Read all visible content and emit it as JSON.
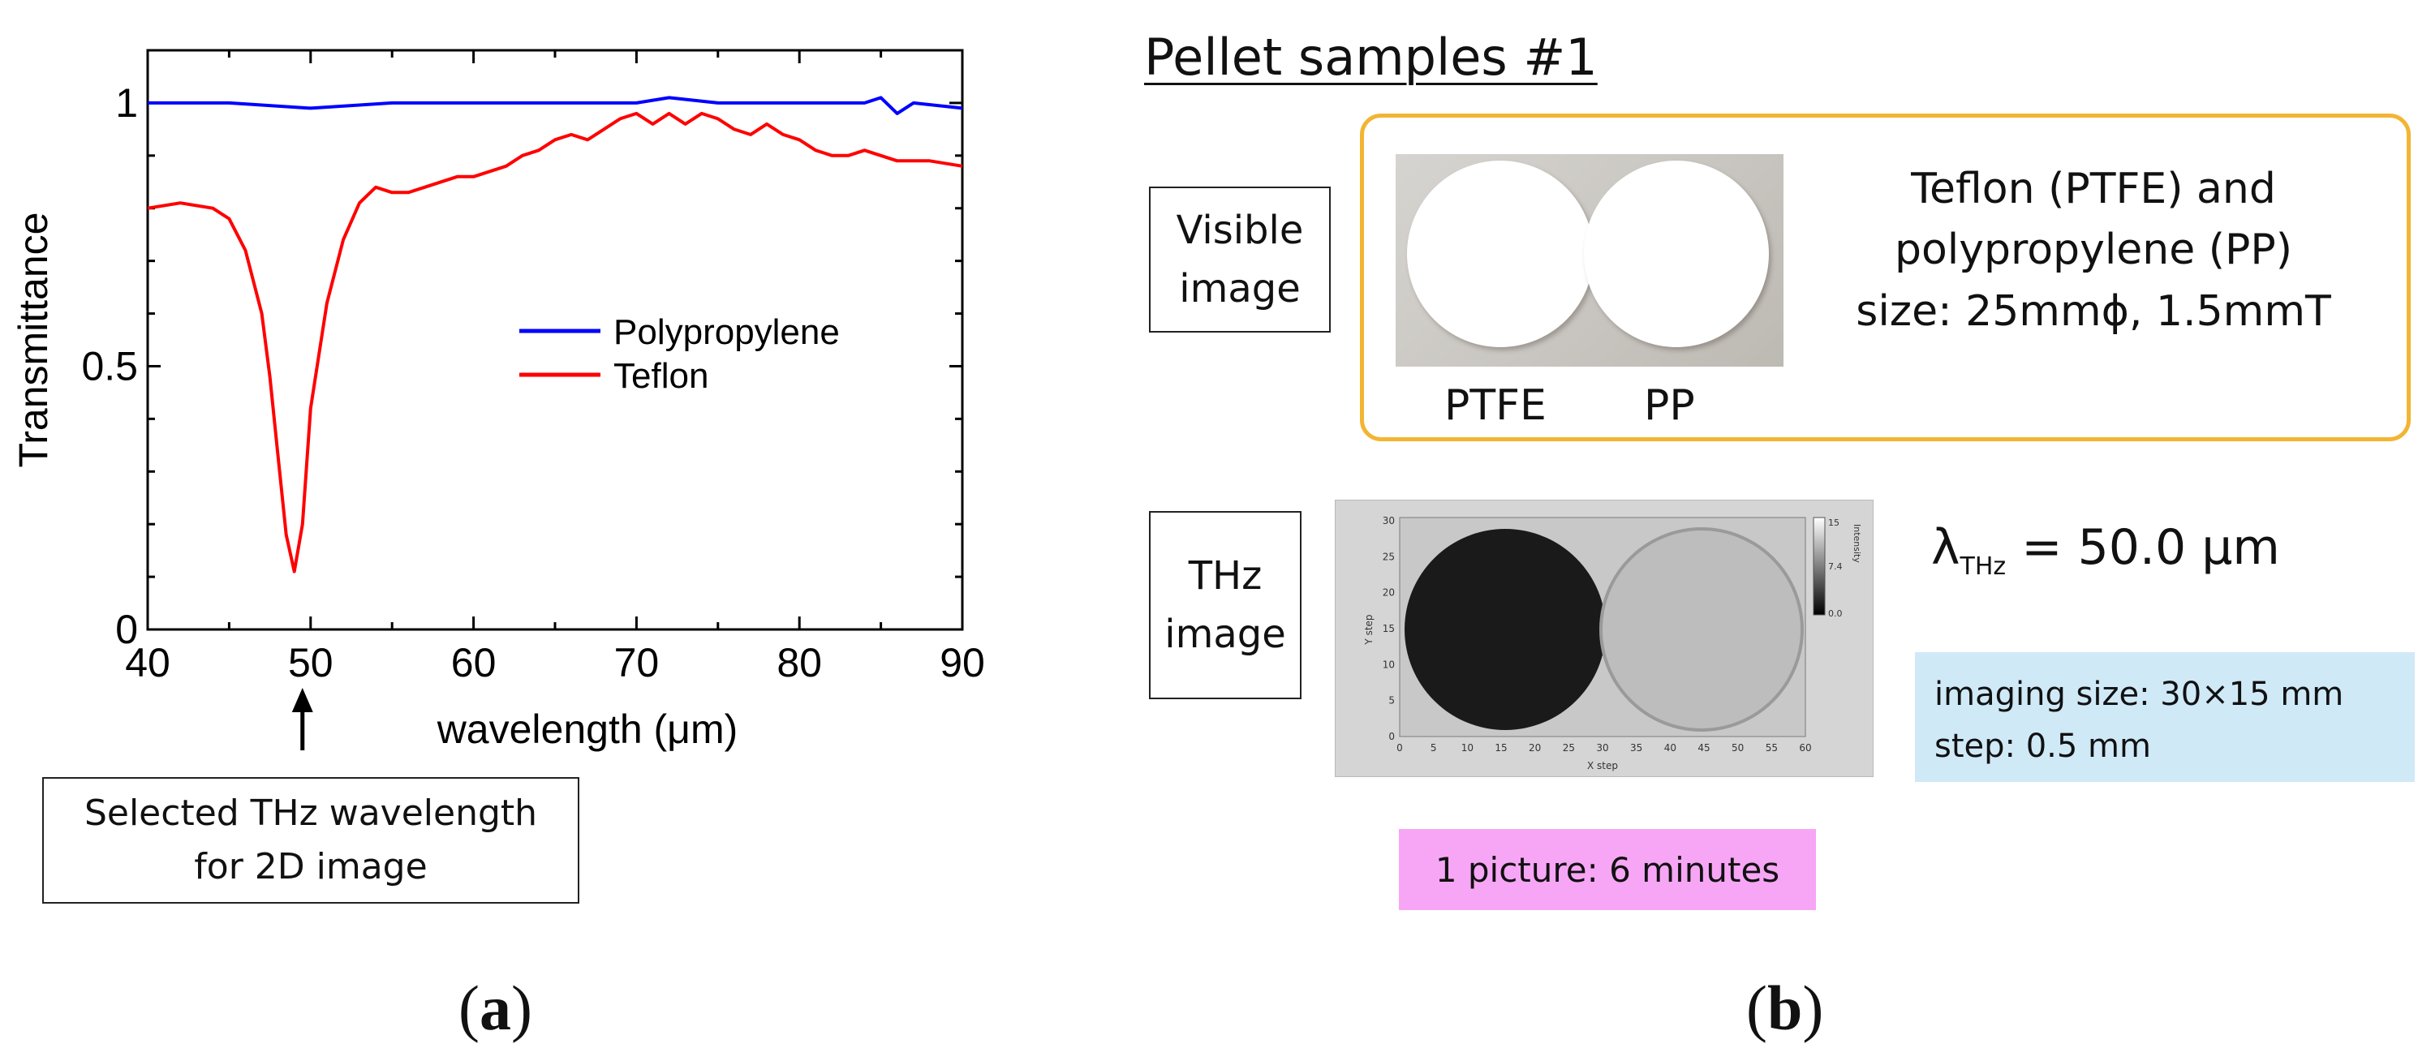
{
  "chart_data": {
    "type": "line",
    "ylabel": "Transmittance",
    "xlabel": "wavelength (μm)",
    "xlim": [
      40,
      90
    ],
    "ylim": [
      0,
      1.1
    ],
    "x_ticks": [
      "40",
      "50",
      "60",
      "70",
      "80",
      "90"
    ],
    "x_tick_values": [
      40,
      50,
      60,
      70,
      80,
      90
    ],
    "y_ticks": [
      "0",
      "0.5",
      "1"
    ],
    "y_tick_values": [
      0,
      0.5,
      1
    ],
    "legend_position": "center-right",
    "series": [
      {
        "name": "Polypropylene",
        "color": "#0000ff",
        "x": [
          40,
          45,
          50,
          55,
          60,
          65,
          70,
          72,
          75,
          80,
          84,
          85,
          86,
          87,
          90
        ],
        "y": [
          1.0,
          1.0,
          0.99,
          1.0,
          1.0,
          1.0,
          1.0,
          1.01,
          1.0,
          1.0,
          1.0,
          1.01,
          0.98,
          1.0,
          0.99
        ]
      },
      {
        "name": "Teflon",
        "color": "#ff0000",
        "x": [
          40,
          42,
          44,
          45,
          46,
          47,
          47.5,
          48,
          48.5,
          49,
          49.5,
          50,
          51,
          52,
          53,
          54,
          55,
          56,
          57,
          58,
          59,
          60,
          61,
          62,
          63,
          64,
          65,
          66,
          67,
          68,
          69,
          70,
          71,
          72,
          73,
          74,
          75,
          76,
          77,
          78,
          79,
          80,
          81,
          82,
          83,
          84,
          85,
          86,
          88,
          90
        ],
        "y": [
          0.8,
          0.81,
          0.8,
          0.78,
          0.72,
          0.6,
          0.48,
          0.33,
          0.18,
          0.11,
          0.2,
          0.42,
          0.62,
          0.74,
          0.81,
          0.84,
          0.83,
          0.83,
          0.84,
          0.85,
          0.86,
          0.86,
          0.87,
          0.88,
          0.9,
          0.91,
          0.93,
          0.94,
          0.93,
          0.95,
          0.97,
          0.98,
          0.96,
          0.98,
          0.96,
          0.98,
          0.97,
          0.95,
          0.94,
          0.96,
          0.94,
          0.93,
          0.91,
          0.9,
          0.9,
          0.91,
          0.9,
          0.89,
          0.89,
          0.88
        ]
      }
    ]
  },
  "annotation": {
    "arrow_x": 49.5,
    "text_line1": "Selected THz wavelength",
    "text_line2": "for 2D image"
  },
  "panel_labels": {
    "a": "a",
    "b": "b"
  },
  "right": {
    "title": "Pellet samples #1",
    "visible_label_line1": "Visible",
    "visible_label_line2": "image",
    "thz_label_line1": "THz",
    "thz_label_line2": "image",
    "photo_caption_left": "PTFE",
    "photo_caption_right": "PP",
    "desc_line1": "Teflon (PTFE) and",
    "desc_line2": "polypropylene (PP)",
    "desc_line3": "size: 25mmϕ, 1.5mmT",
    "lambda_symbol": "λ",
    "lambda_sub": "THz",
    "lambda_value": "= 50.0 μm",
    "imaging_size": "imaging size: 30×15 mm",
    "step": "step: 0.5 mm",
    "picture_time": "1 picture: 6 minutes",
    "thz_x_label": "X step",
    "thz_y_label": "Y step",
    "thz_colorbar_label": "Intensity",
    "thz_x_ticks": [
      "0",
      "5",
      "10",
      "15",
      "20",
      "25",
      "30",
      "35",
      "40",
      "45",
      "50",
      "55",
      "60"
    ],
    "thz_y_ticks": [
      "30",
      "25",
      "20",
      "15",
      "10",
      "5",
      "0"
    ],
    "thz_colorbar_ticks": [
      "15",
      "7.4",
      "0.0"
    ],
    "colors": {
      "frame": "#f2b533",
      "info_box": "#cfe9f7",
      "time_box": "#f7a6f5"
    }
  }
}
